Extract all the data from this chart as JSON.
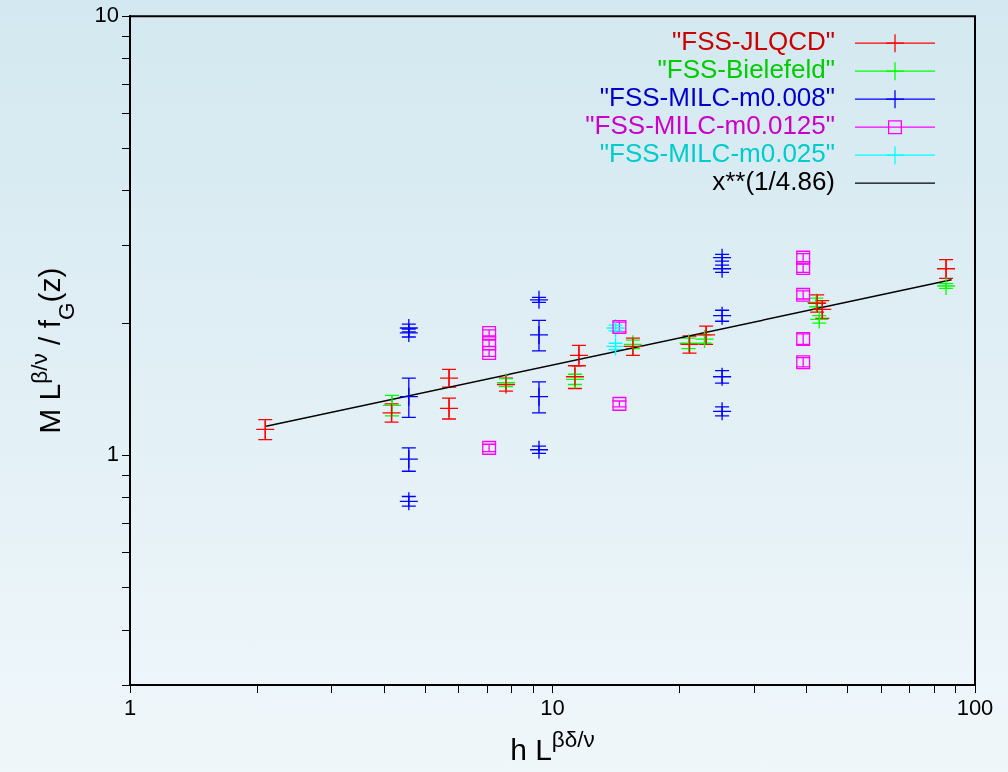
{
  "chart_data": {
    "type": "scatter",
    "xlabel": "h L$^{βδ/ν}$",
    "ylabel": "M L$^{β/ν}$ / f$_{G}$(z)",
    "log": "xy",
    "grid": false,
    "legend": "top right",
    "xlim": [
      1,
      100
    ],
    "xticks": [
      1,
      {
        "value": 2,
        "label": null
      },
      {
        "value": 3,
        "label": null
      },
      {
        "value": 4,
        "label": null
      },
      {
        "value": 5,
        "label": null
      },
      {
        "value": 6,
        "label": null
      },
      {
        "value": 7,
        "label": null
      },
      {
        "value": 8,
        "label": null
      },
      {
        "value": 9,
        "label": null
      },
      10,
      {
        "value": 20,
        "label": null
      },
      {
        "value": 30,
        "label": null
      },
      {
        "value": 40,
        "label": null
      },
      {
        "value": 50,
        "label": null
      },
      {
        "value": 60,
        "label": null
      },
      {
        "value": 70,
        "label": null
      },
      {
        "value": 80,
        "label": null
      },
      {
        "value": 90,
        "label": null
      },
      100
    ],
    "ylim": [
      0.3,
      10
    ],
    "yticks": [
      {
        "value": 0.3,
        "label": null
      },
      {
        "value": 0.4,
        "label": null
      },
      {
        "value": 0.5,
        "label": null
      },
      {
        "value": 0.6,
        "label": null
      },
      {
        "value": 0.7,
        "label": null
      },
      {
        "value": 0.8,
        "label": null
      },
      {
        "value": 0.9,
        "label": null
      },
      1,
      {
        "value": 2,
        "label": null
      },
      {
        "value": 3,
        "label": null
      },
      {
        "value": 4,
        "label": null
      },
      {
        "value": 5,
        "label": null
      },
      {
        "value": 6,
        "label": null
      },
      {
        "value": 7,
        "label": null
      },
      {
        "value": 8,
        "label": null
      },
      {
        "value": 9,
        "label": null
      },
      10
    ],
    "series": [
      {
        "name": "\"FSS-JLQCD\"",
        "color": "#ff0000",
        "marker": "cross",
        "x": [
          2.09,
          4.16,
          5.69,
          5.69,
          7.76,
          11.55,
          11.3,
          15.5,
          21.1,
          23.1,
          42.3,
          43.5,
          85.4
        ],
        "values": [
          1.146,
          1.25,
          1.5,
          1.28,
          1.45,
          1.69,
          1.51,
          1.77,
          1.79,
          1.88,
          2.22,
          2.15,
          2.66
        ],
        "errors": [
          0.06,
          0.06,
          0.07,
          0.07,
          0.05,
          0.09,
          0.09,
          0.08,
          0.08,
          0.09,
          0.1,
          0.1,
          0.13
        ]
      },
      {
        "name": "\"FSS-Bielefeld\"",
        "color": "#00ff00",
        "marker": "cross",
        "x": [
          4.17,
          7.76,
          11.3,
          15.5,
          21.0,
          22.9,
          42.1,
          42.8,
          85.4
        ],
        "values": [
          1.3,
          1.465,
          1.49,
          1.79,
          1.8,
          1.84,
          2.23,
          2.04,
          2.43
        ],
        "errors": [
          0.07,
          0.03,
          0.04,
          0.04,
          0.05,
          0.04,
          0.05,
          0.04,
          0.03
        ]
      },
      {
        "name": "\"FSS-MILC-m0.008\"",
        "color": "#0000ff",
        "marker": "cross",
        "x": [
          4.57,
          4.57,
          4.57,
          4.57,
          4.57,
          9.29,
          9.29,
          9.29,
          9.29,
          25.2,
          25.2,
          25.2,
          25.2,
          25.2
        ],
        "values": [
          1.95,
          1.9,
          1.36,
          0.98,
          0.786,
          2.26,
          1.88,
          1.36,
          1.03,
          2.82,
          2.66,
          2.08,
          1.51,
          1.26
        ],
        "errors": [
          0.04,
          0.04,
          0.14,
          0.06,
          0.02,
          0.03,
          0.15,
          0.11,
          0.02,
          0.05,
          0.05,
          0.06,
          0.05,
          0.03
        ]
      },
      {
        "name": "\"FSS-MILC-m0.0125\"",
        "color": "#ff00ff",
        "marker": "square",
        "x": [
          7.08,
          7.08,
          7.08,
          7.08,
          14.4,
          14.4,
          39.2,
          39.2,
          39.2,
          39.2,
          39.2
        ],
        "values": [
          1.9,
          1.8,
          1.71,
          1.04,
          1.96,
          1.31,
          2.82,
          2.67,
          2.32,
          1.84,
          1.63
        ],
        "errors": [
          0.03,
          0.03,
          0.03,
          0.02,
          0.05,
          0.02,
          0.06,
          0.06,
          0.05,
          0.05,
          0.04
        ]
      },
      {
        "name": "\"FSS-MILC-m0.025\"",
        "color": "#00ffff",
        "marker": "cross",
        "x": [
          14.1,
          14.1
        ],
        "values": [
          1.95,
          1.77
        ],
        "errors": [
          0.03,
          0.03
        ]
      },
      {
        "name": "x**(1/4.86)",
        "type": "line",
        "color": "#000000",
        "marker": "none",
        "x": [
          2.1,
          88
        ],
        "values": [
          1.165,
          2.51
        ]
      }
    ]
  }
}
